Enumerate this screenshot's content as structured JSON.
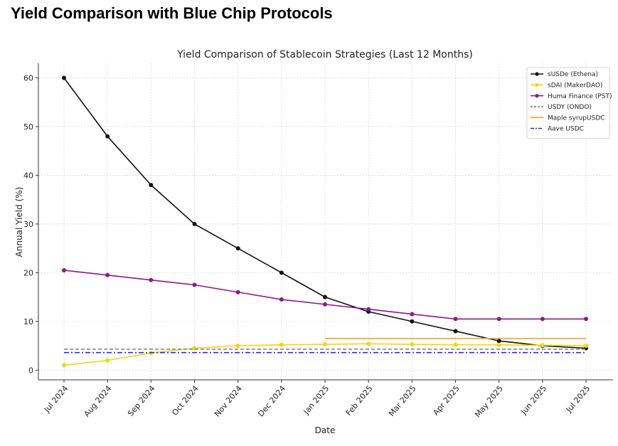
{
  "page": {
    "heading": "Yield Comparison with Blue Chip Protocols"
  },
  "chart_data": {
    "type": "line",
    "title": "Yield Comparison of Stablecoin Strategies (Last 12 Months)",
    "xlabel": "Date",
    "ylabel": "Annual Yield (%)",
    "ylim": [
      -2,
      63
    ],
    "yticks": [
      0,
      10,
      20,
      30,
      40,
      50,
      60
    ],
    "grid": true,
    "legend_position": "top-right",
    "categories": [
      "Jul 2024",
      "Aug 2024",
      "Sep 2024",
      "Oct 2024",
      "Nov 2024",
      "Dec 2024",
      "Jan 2025",
      "Feb 2025",
      "Mar 2025",
      "Apr 2025",
      "May 2025",
      "Jun 2025",
      "Jul 2025"
    ],
    "series": [
      {
        "name": "sUSDe (Ethena)",
        "color": "#111111",
        "style": "solid",
        "marker": true,
        "points": [
          {
            "x": 0,
            "y": 60
          },
          {
            "x": 1,
            "y": 48
          },
          {
            "x": 2,
            "y": 38
          },
          {
            "x": 3,
            "y": 30
          },
          {
            "x": 4,
            "y": 25
          },
          {
            "x": 5,
            "y": 20
          },
          {
            "x": 6,
            "y": 15
          },
          {
            "x": 7,
            "y": 12
          },
          {
            "x": 8,
            "y": 10
          },
          {
            "x": 9,
            "y": 8
          },
          {
            "x": 10,
            "y": 6
          },
          {
            "x": 11,
            "y": 5
          },
          {
            "x": 12,
            "y": 4.5
          }
        ]
      },
      {
        "name": "sDAI (MakerDAO)",
        "color": "#f5d316",
        "style": "solid",
        "marker": true,
        "points": [
          {
            "x": 0,
            "y": 1
          },
          {
            "x": 1,
            "y": 2
          },
          {
            "x": 2,
            "y": 3.5
          },
          {
            "x": 3,
            "y": 4.5
          },
          {
            "x": 4,
            "y": 5
          },
          {
            "x": 5,
            "y": 5.2
          },
          {
            "x": 6,
            "y": 5.3
          },
          {
            "x": 7,
            "y": 5.4
          },
          {
            "x": 8,
            "y": 5.3
          },
          {
            "x": 9,
            "y": 5.2
          },
          {
            "x": 10,
            "y": 5.2
          },
          {
            "x": 11,
            "y": 5.1
          },
          {
            "x": 12,
            "y": 5
          }
        ]
      },
      {
        "name": "Huma Finance (PST)",
        "color": "#8b1a8b",
        "style": "solid",
        "marker": true,
        "points": [
          {
            "x": 0,
            "y": 20.5
          },
          {
            "x": 1,
            "y": 19.5
          },
          {
            "x": 2,
            "y": 18.5
          },
          {
            "x": 3,
            "y": 17.5
          },
          {
            "x": 4,
            "y": 16
          },
          {
            "x": 5,
            "y": 14.5
          },
          {
            "x": 6,
            "y": 13.5
          },
          {
            "x": 7,
            "y": 12.5
          },
          {
            "x": 8,
            "y": 11.5
          },
          {
            "x": 9,
            "y": 10.5
          },
          {
            "x": 10,
            "y": 10.5
          },
          {
            "x": 11,
            "y": 10.5
          },
          {
            "x": 12,
            "y": 10.5
          }
        ]
      },
      {
        "name": "USDY (ONDO)",
        "color": "#808080",
        "style": "dashed",
        "marker": false,
        "points": [
          {
            "x": 0,
            "y": 4.3
          },
          {
            "x": 12,
            "y": 4.3
          }
        ]
      },
      {
        "name": "Maple syrupUSDC",
        "color": "#f5a623",
        "style": "solid",
        "marker": false,
        "points": [
          {
            "x": 6,
            "y": 6.5
          },
          {
            "x": 12,
            "y": 6.5
          }
        ]
      },
      {
        "name": "Aave USDC",
        "color": "#2a2ae0",
        "style": "dashdot",
        "marker": false,
        "points": [
          {
            "x": 0,
            "y": 3.6
          },
          {
            "x": 12,
            "y": 3.6
          }
        ]
      }
    ]
  }
}
